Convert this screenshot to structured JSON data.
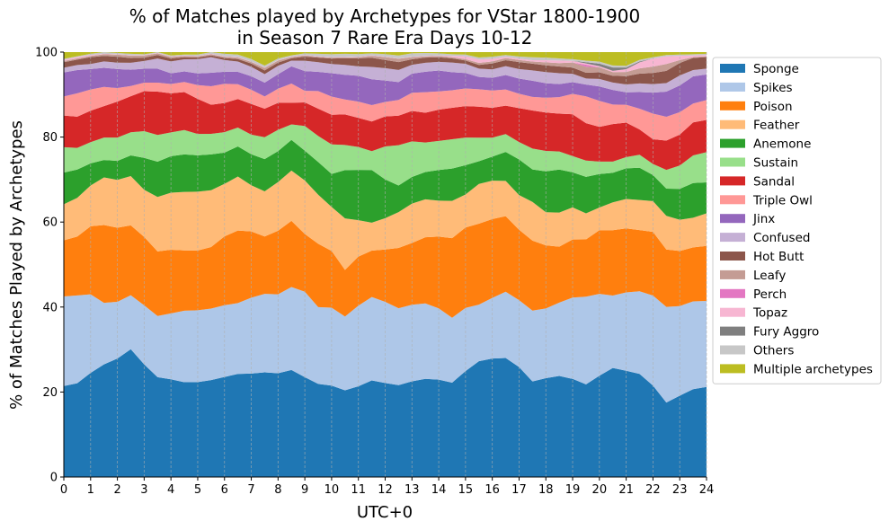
{
  "chart_data": {
    "type": "area",
    "stacked": true,
    "title": [
      "% of Matches played by Archetypes for VStar 1800-1900",
      "in Season 7 Rare Era Days 10-12"
    ],
    "xlabel": "UTC+0",
    "ylabel": "% of Matches Played by Archetypes",
    "xlim": [
      0,
      24
    ],
    "ylim": [
      0,
      100
    ],
    "xticks": [
      0,
      1,
      2,
      3,
      4,
      5,
      6,
      7,
      8,
      9,
      10,
      11,
      12,
      13,
      14,
      15,
      16,
      17,
      18,
      19,
      20,
      21,
      22,
      23,
      24
    ],
    "yticks": [
      0,
      20,
      40,
      60,
      80,
      100
    ],
    "grid": "vertical dashed",
    "legend_position": "upper right, outside plot",
    "x": [
      0,
      0.5,
      1,
      1.5,
      2,
      2.5,
      3,
      3.5,
      4,
      4.5,
      5,
      5.5,
      6,
      6.5,
      7,
      7.5,
      8,
      8.5,
      9,
      9.5,
      10,
      10.5,
      11,
      11.5,
      12,
      12.5,
      13,
      13.5,
      14,
      14.5,
      15,
      15.5,
      16,
      16.5,
      17,
      17.5,
      18,
      18.5,
      19,
      19.5,
      20,
      20.5,
      21,
      21.5,
      22,
      22.5,
      23,
      23.5,
      24
    ],
    "series": [
      {
        "name": "Sponge",
        "color": "#1f77b4",
        "values": [
          21.5,
          22.5,
          24.5,
          26.5,
          28,
          29.8,
          26.5,
          23.5,
          23,
          22.5,
          22.7,
          23,
          24,
          25,
          25.3,
          25.7,
          25.8,
          26.2,
          24.2,
          22.2,
          21.6,
          21,
          22.2,
          23.5,
          22.8,
          22.1,
          22.6,
          23,
          22.8,
          22.5,
          25.3,
          28,
          28.1,
          28,
          25.3,
          22.4,
          23.2,
          24,
          23.5,
          22.8,
          24.5,
          26.2,
          25.6,
          25.3,
          21.4,
          17.5,
          19.5,
          21,
          21.8
        ]
      },
      {
        "name": "Spikes",
        "color": "#aec7e8",
        "values": [
          21.2,
          21.1,
          18.5,
          14.5,
          13.4,
          12.6,
          13.9,
          14.4,
          15.5,
          17,
          17.2,
          17,
          17.2,
          17.2,
          18.6,
          19.3,
          19.6,
          20.3,
          20.7,
          18.3,
          18.4,
          17.9,
          19.7,
          20.3,
          19.7,
          18.5,
          18.1,
          17.7,
          16.7,
          15.5,
          15.1,
          13.7,
          14.4,
          15.6,
          15.4,
          16.6,
          16.4,
          17.4,
          19.5,
          21.6,
          19.8,
          17.4,
          18.9,
          20.3,
          21.1,
          22.5,
          21.5,
          21,
          20.8
        ]
      },
      {
        "name": "Poison",
        "color": "#ff7f0e",
        "values": [
          13.3,
          14.1,
          16,
          18.3,
          17.5,
          16.3,
          16.1,
          15.2,
          15,
          14.3,
          14.3,
          14.6,
          16.5,
          17.6,
          16.2,
          14.1,
          15.8,
          16.2,
          14,
          15.1,
          13.4,
          11.3,
          12,
          11.3,
          12.7,
          14.5,
          14.6,
          15.5,
          16.8,
          19,
          19.2,
          19.6,
          18.7,
          17.8,
          16.2,
          16.4,
          14.8,
          13.3,
          13.9,
          14.1,
          15.4,
          15.7,
          15.4,
          15,
          14.9,
          13.5,
          13.2,
          12.9,
          13.3
        ]
      },
      {
        "name": "Feather",
        "color": "#ffbb78",
        "values": [
          8.5,
          9.3,
          9.6,
          11.2,
          11.3,
          11.5,
          11.1,
          12.8,
          13.4,
          13.9,
          14.1,
          13.5,
          12.6,
          13.1,
          11.3,
          11.1,
          12.1,
          12.3,
          13,
          11.7,
          10.4,
          12.5,
          8.9,
          6.8,
          7.6,
          8.6,
          9.3,
          8.9,
          8.4,
          8.9,
          7.9,
          9.6,
          9.1,
          8.3,
          8,
          9.1,
          7.8,
          8.1,
          7.7,
          6.4,
          5.5,
          6.7,
          7.1,
          7.4,
          7.2,
          7.9,
          7.5,
          7.1,
          7.9
        ]
      },
      {
        "name": "Anemone",
        "color": "#2ca02c",
        "values": [
          7.5,
          6.8,
          5.2,
          4.1,
          4.5,
          4.8,
          7.5,
          8.3,
          8.6,
          8.9,
          8.7,
          8.5,
          7.5,
          7.3,
          7.6,
          7.9,
          7.7,
          7.5,
          7.2,
          7.8,
          7.8,
          11.7,
          12.3,
          12.8,
          9.4,
          6.4,
          6.3,
          6.4,
          7.2,
          7.7,
          7,
          5.5,
          5.7,
          6.8,
          8.2,
          7.6,
          9.6,
          10.2,
          8.4,
          9,
          8.1,
          7.1,
          7.4,
          7.9,
          6.1,
          6.4,
          7.4,
          8.3,
          7.5
        ]
      },
      {
        "name": "Sustain",
        "color": "#98df8a",
        "values": [
          6,
          5.2,
          5,
          5.3,
          5.5,
          5.4,
          6.3,
          6.3,
          5.6,
          5.8,
          5.1,
          4.9,
          4.9,
          4.6,
          4.8,
          5.4,
          5.3,
          3.8,
          6,
          6.2,
          7,
          6.1,
          5.6,
          4.6,
          8,
          9.7,
          8.4,
          6.9,
          6.8,
          7,
          6.6,
          5.7,
          4.5,
          4.2,
          4,
          4.9,
          4.8,
          4.3,
          3.9,
          4,
          3,
          2.7,
          2.7,
          3.2,
          2.6,
          4.4,
          5.6,
          6.6,
          7.3
        ]
      },
      {
        "name": "Sandal",
        "color": "#d62728",
        "values": [
          7.5,
          7.5,
          7.4,
          7.4,
          8.5,
          8.4,
          9.4,
          10.2,
          9.2,
          9,
          8.4,
          6.9,
          7,
          6.9,
          7.5,
          7,
          6.7,
          5.3,
          5.7,
          6.5,
          7,
          7.4,
          7.1,
          7.2,
          7.3,
          7.1,
          7.2,
          7,
          7.3,
          7.5,
          7.5,
          7.5,
          7.1,
          6.7,
          7.8,
          8.9,
          9,
          9,
          10,
          9.2,
          8.4,
          9,
          8.3,
          6.2,
          5.8,
          6.9,
          7.4,
          7.9,
          7.8
        ]
      },
      {
        "name": "Triple Owl",
        "color": "#ff9896",
        "values": [
          4.5,
          5.6,
          5,
          4.5,
          3.2,
          2.4,
          2,
          2.1,
          2.2,
          2.4,
          3.3,
          4.4,
          4.6,
          3.6,
          3.5,
          3,
          3.5,
          4.7,
          2.8,
          4.2,
          4.3,
          3.6,
          4,
          4,
          3.5,
          3.8,
          4.3,
          4.8,
          4.3,
          4.2,
          4.2,
          4.2,
          4.1,
          3.8,
          3.3,
          3.2,
          3.5,
          3.9,
          4.9,
          6.6,
          6.3,
          4.7,
          4.3,
          5.1,
          6,
          5.6,
          5.4,
          4.5,
          4.8
        ]
      },
      {
        "name": "Jinx",
        "color": "#9467bd",
        "values": [
          5.7,
          5.6,
          4.8,
          4.5,
          4.5,
          3.8,
          3.3,
          3.3,
          2.5,
          2.5,
          2.8,
          3.2,
          2.9,
          3,
          3.3,
          3.4,
          3.6,
          4.2,
          4.8,
          4.6,
          5.5,
          6,
          6.3,
          6.3,
          5.2,
          4.3,
          4.5,
          4.8,
          4.9,
          4.3,
          3.7,
          3,
          3,
          3.4,
          3.5,
          3.8,
          3.4,
          3.1,
          2.8,
          2.9,
          3.5,
          3.5,
          3,
          4.1,
          4.9,
          5.9,
          6.4,
          6.5,
          6.2
        ]
      },
      {
        "name": "Confused",
        "color": "#c5b0d5",
        "values": [
          1.1,
          1.2,
          1.2,
          1.5,
          1.5,
          1.6,
          1.8,
          2.4,
          2.8,
          2.9,
          3.4,
          3.7,
          2.8,
          2.5,
          2.3,
          2.1,
          2.1,
          1.4,
          2.5,
          2.3,
          2.2,
          2.4,
          2.3,
          3,
          3,
          2.9,
          2.1,
          2.1,
          2,
          2.3,
          2.2,
          2,
          2,
          2.1,
          2.2,
          2.4,
          2.6,
          2.6,
          2,
          1.5,
          1.8,
          1.8,
          1.9,
          2.1,
          2,
          2,
          2.4,
          1.5,
          1.4
        ]
      },
      {
        "name": "Hot Butt",
        "color": "#8c564b",
        "values": [
          1.3,
          1.3,
          1.6,
          1.3,
          1.4,
          1.1,
          0.8,
          0.8,
          0.7,
          0.5,
          0.4,
          0.4,
          0.5,
          0.6,
          0.8,
          0.9,
          0.8,
          0.6,
          1,
          1.1,
          1.3,
          1.6,
          2,
          2.2,
          2,
          1.9,
          1.3,
          1.2,
          1.1,
          1,
          0.8,
          0.9,
          1.4,
          1.4,
          1.6,
          1.6,
          1.6,
          1.6,
          1.5,
          1.4,
          1.6,
          1.6,
          2,
          2.4,
          2.6,
          2.9,
          3,
          2.9,
          2.8
        ]
      },
      {
        "name": "Leafy",
        "color": "#c49c94",
        "values": [
          0.3,
          0.3,
          0.3,
          0.4,
          0.5,
          0.6,
          0.5,
          0.4,
          0.4,
          0.3,
          0.3,
          0.3,
          0.3,
          0.4,
          0.4,
          0.6,
          0.5,
          0.3,
          0.3,
          0.2,
          0.2,
          0.2,
          0.3,
          0.5,
          0.7,
          0.8,
          0.5,
          0.3,
          0.3,
          0.3,
          0.3,
          0.5,
          0.5,
          0.5,
          0.5,
          0.5,
          0.7,
          0.8,
          1.2,
          1.5,
          1.2,
          0.9,
          1,
          1.3,
          1.5,
          1.6,
          0.7,
          0.2,
          0.2
        ]
      },
      {
        "name": "Perch",
        "color": "#e377c2",
        "values": [
          0,
          0,
          0,
          0,
          0,
          0,
          0,
          0,
          0,
          0,
          0,
          0,
          0,
          0,
          0,
          0,
          0,
          0,
          0,
          0,
          0,
          0,
          0,
          0,
          0,
          0,
          0,
          0,
          0,
          0,
          0,
          0,
          0,
          0,
          0,
          0,
          0,
          0,
          0,
          0.5,
          0,
          0,
          0,
          0,
          0,
          0,
          0,
          0,
          0
        ]
      },
      {
        "name": "Topaz",
        "color": "#f7b6d2",
        "values": [
          0.3,
          0.3,
          0.2,
          0.1,
          0.1,
          0.1,
          0.1,
          0.1,
          0.1,
          0.1,
          0.1,
          0.1,
          0.1,
          0.1,
          0.1,
          0.1,
          0.1,
          0.1,
          0.1,
          0.1,
          0.1,
          0.1,
          0.1,
          0.1,
          0.1,
          0.1,
          0.1,
          0.1,
          0.1,
          0.3,
          0.7,
          0.8,
          0.6,
          0.3,
          0.3,
          0.3,
          0.5,
          0.6,
          0.4,
          0.3,
          0.3,
          0.3,
          0.7,
          1.5,
          1.9,
          1.8,
          1,
          0.4,
          0.3
        ]
      },
      {
        "name": "Fury Aggro",
        "color": "#7f7f7f",
        "values": [
          0,
          0,
          0,
          0,
          0,
          0,
          0,
          0,
          0,
          0,
          0,
          0,
          0,
          0,
          0,
          0,
          0,
          0,
          0,
          0,
          0,
          0,
          0,
          0,
          0,
          0,
          0,
          0,
          0,
          0,
          0,
          0,
          0,
          0,
          0,
          0,
          0,
          0,
          0,
          0.3,
          0.6,
          0.8,
          0.4,
          0.2,
          0,
          0,
          0,
          0,
          0
        ]
      },
      {
        "name": "Others",
        "color": "#c7c7c7",
        "values": [
          0.2,
          0.2,
          0.3,
          0.4,
          0.3,
          0.3,
          0.2,
          0.2,
          0.2,
          0.2,
          0.3,
          0.4,
          0.6,
          0.6,
          0.6,
          0.5,
          0.4,
          0.3,
          0.4,
          0.6,
          0.7,
          0.8,
          0.6,
          0.5,
          0.6,
          0.7,
          0.8,
          0.7,
          0.5,
          0.4,
          0.4,
          0.5,
          0.5,
          0.4,
          0.5,
          0.7,
          0.6,
          0.5,
          0.4,
          0.4,
          0.5,
          0.5,
          0.4,
          0.4,
          0.3,
          0.3,
          0.3,
          0.3,
          0.3
        ]
      },
      {
        "name": "Multiple archetypes",
        "color": "#bcbd22",
        "values": [
          1.6,
          1,
          0.4,
          0,
          0.2,
          0.4,
          0.5,
          0,
          0.8,
          0.6,
          0.6,
          0,
          0.4,
          0.6,
          1.7,
          3.3,
          1.6,
          0.8,
          0.3,
          0.4,
          0.5,
          0.4,
          0.5,
          0.3,
          0.5,
          0.8,
          0.3,
          0.2,
          0.3,
          0.5,
          0.6,
          1.3,
          1.1,
          0.7,
          1,
          1.2,
          1.3,
          1.5,
          1.7,
          2.1,
          2.3,
          3.2,
          3.3,
          1.9,
          1.2,
          0.7,
          0.6,
          0.5,
          0.4
        ]
      }
    ]
  }
}
